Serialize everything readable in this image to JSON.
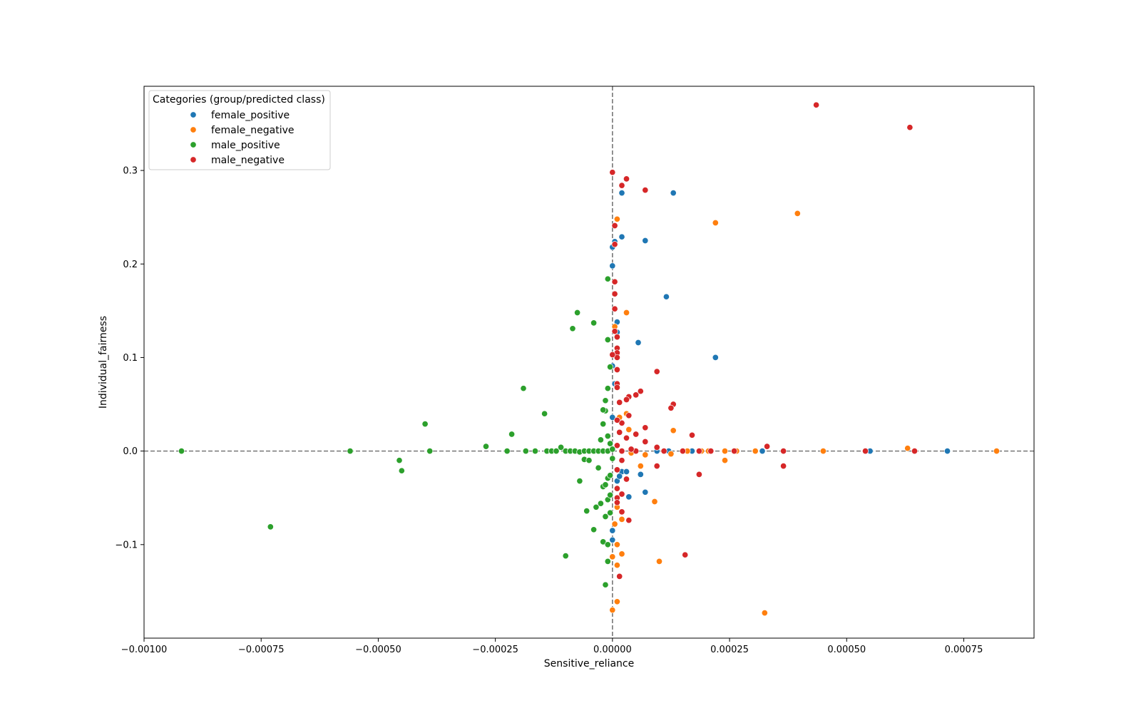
{
  "chart_data": {
    "type": "scatter",
    "title": "",
    "xlabel": "Sensitive_reliance",
    "ylabel": "Individual_fairness",
    "xlim": [
      -0.001,
      0.0009
    ],
    "ylim": [
      -0.2,
      0.39
    ],
    "x_ticks": [
      -0.001,
      -0.00075,
      -0.0005,
      -0.00025,
      0,
      0.00025,
      0.0005,
      0.00075
    ],
    "x_tick_labels": [
      "−0.00100",
      "−0.00075",
      "−0.00050",
      "−0.00025",
      "0.00000",
      "0.00025",
      "0.00050",
      "0.00075"
    ],
    "y_ticks": [
      -0.1,
      0,
      0.1,
      0.2,
      0.3
    ],
    "y_tick_labels": [
      "−0.1",
      "0.0",
      "0.1",
      "0.2",
      "0.3"
    ],
    "grid": false,
    "reference_lines": {
      "x": 0,
      "y": 0,
      "style": "dashed",
      "color": "#777777"
    },
    "legend": {
      "title": "Categories (group/predicted class)",
      "position": "top-left"
    },
    "series": [
      {
        "name": "female_positive",
        "color": "#1f77b4",
        "points": [
          [
            0.00013,
            0.276
          ],
          [
            2e-05,
            0.276
          ],
          [
            7e-05,
            0.225
          ],
          [
            2e-05,
            0.229
          ],
          [
            5e-06,
            0.224
          ],
          [
            0.0,
            0.218
          ],
          [
            0.0,
            0.198
          ],
          [
            0.000115,
            0.165
          ],
          [
            5.5e-05,
            0.116
          ],
          [
            0.00022,
            0.1
          ],
          [
            1e-05,
            0.138
          ],
          [
            1e-05,
            0.127
          ],
          [
            0.0,
            0.091
          ],
          [
            5e-06,
            0.072
          ],
          [
            0.0,
            0.036
          ],
          [
            2e-05,
            -0.022
          ],
          [
            3e-05,
            -0.022
          ],
          [
            6e-05,
            -0.025
          ],
          [
            7e-05,
            -0.044
          ],
          [
            3.5e-05,
            -0.049
          ],
          [
            1e-05,
            -0.032
          ],
          [
            1.5e-05,
            -0.027
          ],
          [
            0.0,
            -0.085
          ],
          [
            0.0,
            -0.095
          ],
          [
            0.00032,
            0.0
          ],
          [
            0.00055,
            0.0
          ],
          [
            0.000715,
            0.0
          ],
          [
            0.00017,
            0.0
          ],
          [
            5e-05,
            0.0
          ],
          [
            9.5e-05,
            0.0
          ],
          [
            0.00012,
            0.0
          ]
        ]
      },
      {
        "name": "female_negative",
        "color": "#ff7f0e",
        "points": [
          [
            0.00022,
            0.244
          ],
          [
            0.000395,
            0.254
          ],
          [
            1e-05,
            0.248
          ],
          [
            3e-05,
            0.148
          ],
          [
            5e-06,
            0.133
          ],
          [
            3e-05,
            0.04
          ],
          [
            1.5e-05,
            0.036
          ],
          [
            0.00013,
            0.022
          ],
          [
            3.5e-05,
            0.023
          ],
          [
            0.00024,
            -0.01
          ],
          [
            6e-05,
            -0.016
          ],
          [
            9e-05,
            -0.054
          ],
          [
            1e-05,
            -0.06
          ],
          [
            2e-05,
            -0.073
          ],
          [
            5e-06,
            -0.078
          ],
          [
            1e-05,
            -0.1
          ],
          [
            2e-05,
            -0.11
          ],
          [
            0.0,
            -0.113
          ],
          [
            0.0001,
            -0.118
          ],
          [
            1e-05,
            -0.122
          ],
          [
            1e-05,
            -0.161
          ],
          [
            0.0,
            -0.17
          ],
          [
            0.000325,
            -0.173
          ],
          [
            0.000305,
            0.0
          ],
          [
            0.00045,
            0.0
          ],
          [
            0.00063,
            0.003
          ],
          [
            0.00082,
            0.0
          ],
          [
            0.000205,
            0.0
          ],
          [
            0.00024,
            0.0
          ],
          [
            0.000125,
            -0.003
          ],
          [
            7e-05,
            -0.004
          ],
          [
            4e-05,
            -0.002
          ],
          [
            0.00016,
            0.0
          ],
          [
            0.00019,
            0.0
          ],
          [
            0.000265,
            0.0
          ]
        ]
      },
      {
        "name": "male_positive",
        "color": "#2ca02c",
        "points": [
          [
            -0.00092,
            0.0
          ],
          [
            -0.00073,
            -0.081
          ],
          [
            -0.00056,
            0.0
          ],
          [
            -0.000455,
            -0.01
          ],
          [
            -0.00045,
            -0.021
          ],
          [
            -0.0004,
            0.029
          ],
          [
            -0.00039,
            0.0
          ],
          [
            -0.00027,
            0.005
          ],
          [
            -0.000215,
            0.018
          ],
          [
            -0.000225,
            0.0
          ],
          [
            -0.00019,
            0.067
          ],
          [
            -0.000185,
            0.0
          ],
          [
            -0.000145,
            0.04
          ],
          [
            -0.000165,
            0.0
          ],
          [
            -0.00014,
            0.0
          ],
          [
            -0.00013,
            0.0
          ],
          [
            -0.00012,
            0.0
          ],
          [
            -0.00011,
            0.004
          ],
          [
            -0.0001,
            0.0
          ],
          [
            -9e-05,
            0.0
          ],
          [
            -8e-05,
            0.0
          ],
          [
            -7e-05,
            -0.001
          ],
          [
            -6e-05,
            0.0
          ],
          [
            -5e-05,
            0.0
          ],
          [
            -4e-05,
            0.0
          ],
          [
            -3e-05,
            0.0
          ],
          [
            -2e-05,
            0.0
          ],
          [
            -1e-05,
            0.0
          ],
          [
            -7.5e-05,
            0.148
          ],
          [
            -8.5e-05,
            0.131
          ],
          [
            -4e-05,
            0.137
          ],
          [
            -1e-05,
            0.184
          ],
          [
            -1e-05,
            0.119
          ],
          [
            -1e-05,
            0.067
          ],
          [
            -1.5e-05,
            0.054
          ],
          [
            -1.5e-05,
            0.043
          ],
          [
            -2e-05,
            0.044
          ],
          [
            -2e-05,
            0.029
          ],
          [
            -2.5e-05,
            0.012
          ],
          [
            -1e-05,
            0.016
          ],
          [
            -5e-06,
            0.008
          ],
          [
            -7e-05,
            -0.032
          ],
          [
            -6e-05,
            -0.009
          ],
          [
            -5e-05,
            -0.01
          ],
          [
            -3e-05,
            -0.018
          ],
          [
            -2e-05,
            -0.038
          ],
          [
            -1.5e-05,
            -0.036
          ],
          [
            -1e-05,
            -0.029
          ],
          [
            -5e-06,
            -0.026
          ],
          [
            -5.5e-05,
            -0.064
          ],
          [
            -3.5e-05,
            -0.06
          ],
          [
            -2.5e-05,
            -0.056
          ],
          [
            -1e-05,
            -0.052
          ],
          [
            -5e-06,
            -0.047
          ],
          [
            -4e-05,
            -0.084
          ],
          [
            -1.5e-05,
            -0.07
          ],
          [
            -2e-05,
            -0.097
          ],
          [
            -1e-05,
            -0.1
          ],
          [
            -0.0001,
            -0.112
          ],
          [
            -1e-05,
            -0.118
          ],
          [
            -1.5e-05,
            -0.143
          ],
          [
            -5e-06,
            -0.066
          ],
          [
            0.0,
            -0.008
          ],
          [
            0.0,
            0.002
          ],
          [
            -5e-06,
            0.09
          ]
        ]
      },
      {
        "name": "male_negative",
        "color": "#d62728",
        "points": [
          [
            0.000435,
            0.37
          ],
          [
            0.000635,
            0.346
          ],
          [
            0.0,
            0.298
          ],
          [
            3e-05,
            0.291
          ],
          [
            2e-05,
            0.284
          ],
          [
            7e-05,
            0.279
          ],
          [
            5e-06,
            0.241
          ],
          [
            5e-06,
            0.221
          ],
          [
            5e-06,
            0.181
          ],
          [
            5e-06,
            0.168
          ],
          [
            5e-06,
            0.152
          ],
          [
            5e-06,
            0.128
          ],
          [
            1e-05,
            0.122
          ],
          [
            1e-05,
            0.11
          ],
          [
            1e-05,
            0.105
          ],
          [
            1e-05,
            0.1
          ],
          [
            0.0,
            0.103
          ],
          [
            1e-05,
            0.087
          ],
          [
            9.5e-05,
            0.085
          ],
          [
            1e-05,
            0.072
          ],
          [
            1e-05,
            0.068
          ],
          [
            6e-05,
            0.064
          ],
          [
            5e-05,
            0.06
          ],
          [
            3.5e-05,
            0.058
          ],
          [
            3e-05,
            0.055
          ],
          [
            1.5e-05,
            0.052
          ],
          [
            0.00013,
            0.05
          ],
          [
            0.000125,
            0.046
          ],
          [
            3.5e-05,
            0.038
          ],
          [
            2e-05,
            0.03
          ],
          [
            7e-05,
            0.025
          ],
          [
            5e-05,
            0.018
          ],
          [
            0.00017,
            0.017
          ],
          [
            1.5e-05,
            0.02
          ],
          [
            3e-05,
            0.014
          ],
          [
            7e-05,
            0.01
          ],
          [
            9.5e-05,
            0.004
          ],
          [
            0.00033,
            0.005
          ],
          [
            1e-05,
            0.006
          ],
          [
            2e-05,
            0.0
          ],
          [
            5e-05,
            0.0
          ],
          [
            0.00011,
            0.0
          ],
          [
            0.00015,
            0.0
          ],
          [
            0.000185,
            0.0
          ],
          [
            0.00021,
            0.0
          ],
          [
            0.00026,
            0.0
          ],
          [
            0.000365,
            0.0
          ],
          [
            0.00054,
            0.0
          ],
          [
            0.000645,
            0.0
          ],
          [
            0.000365,
            -0.016
          ],
          [
            0.000185,
            -0.025
          ],
          [
            9.5e-05,
            -0.016
          ],
          [
            2e-05,
            -0.01
          ],
          [
            1e-05,
            -0.02
          ],
          [
            3e-05,
            -0.03
          ],
          [
            1e-05,
            -0.04
          ],
          [
            1e-05,
            -0.05
          ],
          [
            1e-05,
            -0.055
          ],
          [
            2e-05,
            -0.065
          ],
          [
            3.5e-05,
            -0.074
          ],
          [
            2e-05,
            -0.046
          ],
          [
            0.000155,
            -0.111
          ],
          [
            1.5e-05,
            -0.134
          ],
          [
            4e-05,
            0.002
          ],
          [
            1e-05,
            0.033
          ]
        ]
      }
    ]
  }
}
